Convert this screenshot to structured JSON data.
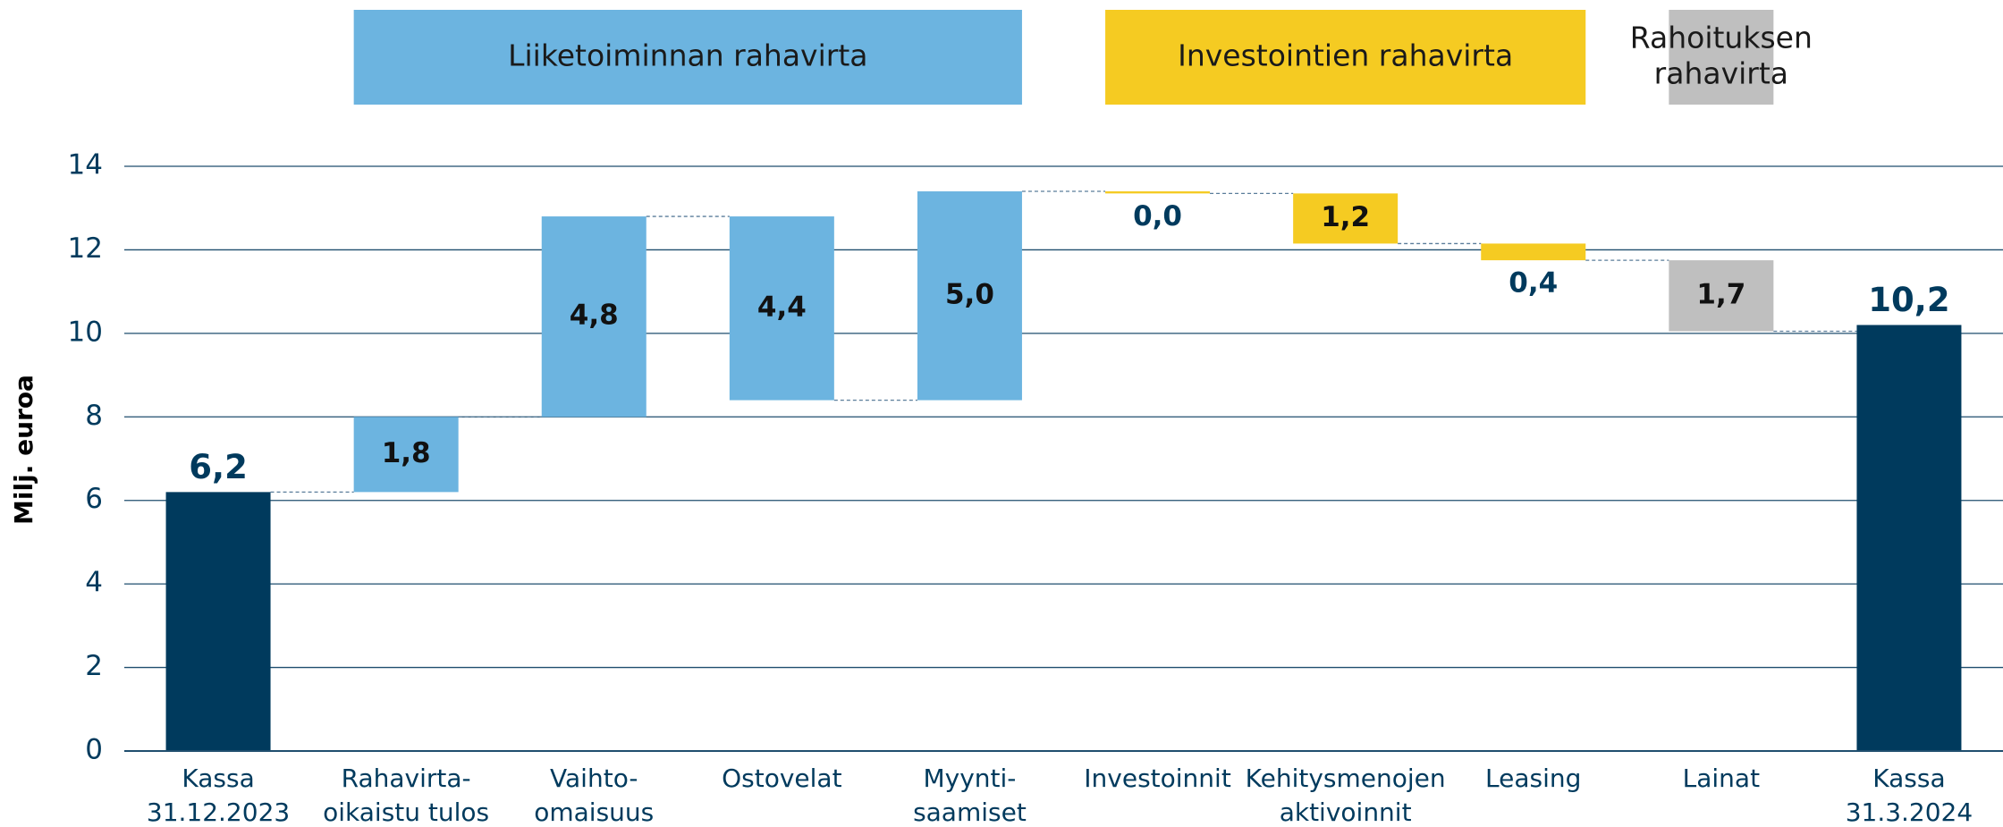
{
  "chart_data": {
    "type": "waterfall",
    "y_label": "Milj. euroa",
    "groups": [
      {
        "label": [
          "Liiketoiminnan rahavirta"
        ],
        "color": "#6cb4e0",
        "from": 1,
        "to": 4
      },
      {
        "label": [
          "Investointien rahavirta"
        ],
        "color": "#f5cb22",
        "from": 5,
        "to": 7
      },
      {
        "label": [
          "Rahoituksen",
          "rahavirta"
        ],
        "color": "#bfbfbf",
        "from": 8,
        "to": 8
      }
    ],
    "categories": [
      [
        "Kassa",
        "31.12.2023"
      ],
      [
        "Rahavirta-",
        "oikaistu tulos"
      ],
      [
        "Vaihto-",
        "omaisuus"
      ],
      [
        "Ostovelat"
      ],
      [
        "Myynti-",
        "saamiset"
      ],
      [
        "Investoinnit"
      ],
      [
        "Kehitysmenojen",
        "aktivoinnit"
      ],
      [
        "Leasing"
      ],
      [
        "Lainat"
      ],
      [
        "Kassa",
        "31.3.2024"
      ]
    ],
    "values": [
      6.2,
      1.8,
      4.8,
      -4.4,
      5.0,
      -0.05,
      -1.2,
      -0.4,
      -1.7,
      10.2
    ],
    "value_labels": [
      "6,2",
      "1,8",
      "4,8",
      "4,4",
      "5,0",
      "0,0",
      "1,2",
      "0,4",
      "1,7",
      "10,2"
    ],
    "colors": [
      "#003a5d",
      "#6cb4e0",
      "#6cb4e0",
      "#6cb4e0",
      "#6cb4e0",
      "#f5cb22",
      "#f5cb22",
      "#f5cb22",
      "#bfbfbf",
      "#003a5d"
    ],
    "ylim": [
      0,
      14
    ],
    "yticks": [
      0,
      2,
      4,
      6,
      8,
      10,
      12,
      14
    ],
    "grid": true
  }
}
